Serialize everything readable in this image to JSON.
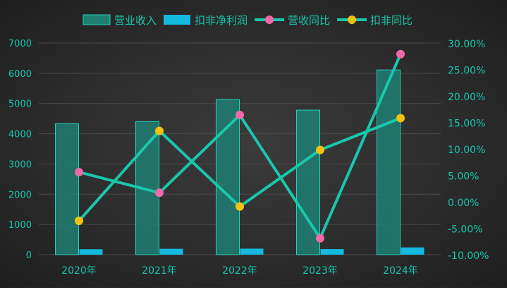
{
  "chart_data": {
    "type": "bar",
    "categories": [
      "2020年",
      "2021年",
      "2022年",
      "2023年",
      "2024年"
    ],
    "series": [
      {
        "name": "营业收入",
        "kind": "bar",
        "axis": "left",
        "values": [
          4330,
          4400,
          5130,
          4780,
          6110
        ],
        "color": "#1b8f80"
      },
      {
        "name": "扣非净利润",
        "kind": "bar",
        "axis": "left",
        "values": [
          180,
          195,
          200,
          185,
          240
        ],
        "color": "#14b9e0"
      },
      {
        "name": "营收同比",
        "kind": "line",
        "axis": "right",
        "values": [
          5.6,
          1.7,
          16.4,
          -6.9,
          27.9
        ],
        "color": "#19c7ad",
        "marker_color": "#f06aa8"
      },
      {
        "name": "扣非同比",
        "kind": "line",
        "axis": "right",
        "values": [
          -3.6,
          13.4,
          -0.9,
          9.8,
          15.8
        ],
        "color": "#19c7ad",
        "marker_color": "#f2c20f"
      }
    ],
    "y_left": {
      "min": 0,
      "max": 7000,
      "ticks": [
        "0",
        "1000",
        "2000",
        "3000",
        "4000",
        "5000",
        "6000",
        "7000"
      ]
    },
    "y_right": {
      "min": -10,
      "max": 30,
      "ticks": [
        "-10.00%",
        "-5.00%",
        "0.00%",
        "5.00%",
        "10.00%",
        "15.00%",
        "20.00%",
        "25.00%",
        "30.00%"
      ]
    },
    "legend_position": "top-right",
    "grid": true
  },
  "colors": {
    "text": "#19c7ad",
    "grid": "#4a4a4a",
    "line": "#19c7ad"
  }
}
